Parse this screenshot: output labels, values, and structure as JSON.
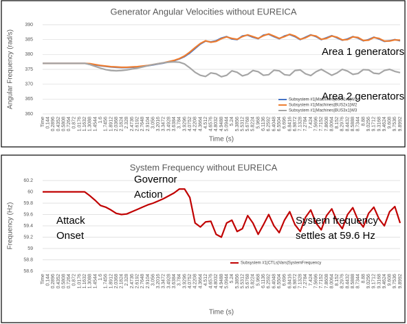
{
  "chart_data": [
    {
      "type": "line",
      "title": "Generator Angular Velocities without EUREICA",
      "y_label": "Angular Frequency (rad/s)",
      "x_label": "Time (s)",
      "categories": [
        "Time",
        "0.144",
        "0.2896",
        "0.4352",
        "0.5808",
        "0.7264",
        "0.872",
        "1.0176",
        "1.1632",
        "1.3088",
        "1.4544",
        "1.6",
        "1.7456",
        "1.8912",
        "2.0368",
        "2.1824",
        "2.328",
        "2.4736",
        "2.6192",
        "2.7648",
        "2.9104",
        "3.056",
        "3.2016",
        "3.3472",
        "3.4928",
        "3.6384",
        "3.784",
        "3.9296",
        "4.0752",
        "4.2208",
        "4.3664",
        "4.512",
        "4.6576",
        "4.8032",
        "4.9488",
        "5.0944",
        "5.24",
        "5.3856",
        "5.5312",
        "5.6768",
        "5.8224",
        "5.968",
        "6.1136",
        "6.2592",
        "6.4048",
        "6.5504",
        "6.696",
        "6.8416",
        "6.9872",
        "7.1328",
        "7.2784",
        "7.424",
        "7.5696",
        "7.7152",
        "7.8608",
        "8.0064",
        "8.152",
        "8.2976",
        "8.4432",
        "8.5888",
        "8.7344",
        "8.88",
        "9.0256",
        "9.1712",
        "9.3168",
        "9.4624",
        "9.608",
        "9.7536",
        "9.8992"
      ],
      "series": [
        {
          "name": "Subsystem #1|Machines|BUS1x1|W1",
          "color": "#4472c4",
          "values": [
            377,
            377,
            377,
            377,
            377,
            377,
            377,
            377,
            377,
            376.8,
            376.5,
            376.2,
            376,
            375.8,
            375.7,
            375.6,
            375.6,
            375.7,
            375.8,
            376,
            376.2,
            376.5,
            376.8,
            377.1,
            377.5,
            377.9,
            378.5,
            379.3,
            380.5,
            382,
            383.5,
            384.5,
            384.2,
            384.6,
            385.5,
            386,
            385.2,
            385,
            386.2,
            386.5,
            385.8,
            385.3,
            386.5,
            386.8,
            386,
            385.3,
            386.2,
            386.7,
            386,
            385,
            385.8,
            386.6,
            386,
            385,
            385.6,
            386.3,
            385.6,
            384.8,
            385.2,
            386,
            385.5,
            384.6,
            385,
            385.8,
            385.2,
            384.4,
            384.6,
            385,
            384.6
          ]
        },
        {
          "name": "Subsystem #1|Machines|BUS2x1|W2",
          "color": "#ed7d31",
          "values": [
            377,
            377,
            377,
            377,
            377,
            377,
            377,
            377,
            377,
            376.9,
            376.6,
            376.3,
            376.1,
            375.9,
            375.8,
            375.7,
            375.7,
            375.8,
            375.9,
            376.1,
            376.3,
            376.6,
            376.9,
            377.2,
            377.6,
            378,
            378.6,
            379.5,
            380.8,
            382.3,
            383.7,
            384.6,
            384.1,
            384.4,
            385.3,
            385.9,
            385.4,
            385.1,
            386,
            386.6,
            386,
            385.4,
            386.3,
            386.9,
            386.2,
            385.4,
            386,
            386.8,
            386.2,
            385.1,
            385.6,
            386.5,
            386.2,
            385.1,
            385.4,
            386.2,
            385.8,
            384.9,
            385,
            385.9,
            385.7,
            384.7,
            384.8,
            385.7,
            385.4,
            384.5,
            384.5,
            384.9,
            384.8
          ]
        },
        {
          "name": "Subsystem #1|Machines|BUS3x1|W3",
          "color": "#a5a5a5",
          "values": [
            377,
            377,
            377,
            377,
            377,
            377,
            377,
            377,
            377,
            376.6,
            376,
            375.4,
            374.9,
            374.6,
            374.5,
            374.6,
            374.8,
            375.1,
            375.4,
            375.8,
            376.2,
            376.6,
            376.9,
            377.2,
            377.4,
            377.5,
            377.4,
            376.8,
            375.5,
            374,
            373,
            372.6,
            373.8,
            373.5,
            372.5,
            373,
            374.5,
            374,
            372.8,
            373.3,
            374.6,
            374.2,
            373,
            373.2,
            374.7,
            374.5,
            373.2,
            373,
            374.6,
            374.8,
            373.5,
            372.9,
            374.2,
            375,
            374,
            373,
            373.8,
            375,
            374.4,
            373.3,
            373.6,
            374.9,
            374.8,
            373.7,
            373.5,
            374.6,
            375,
            374.3,
            373.9
          ]
        }
      ],
      "ylim": [
        360,
        390
      ],
      "yticks": [
        360,
        365,
        370,
        375,
        380,
        385,
        390
      ],
      "grid": true,
      "legend": "bottom-right",
      "annotations": [
        [
          "Area 1 generators"
        ],
        [
          "Area 2 generators"
        ]
      ]
    },
    {
      "type": "line",
      "title": "System Frequency without EUREICA",
      "y_label": "Frequency (Hz)",
      "x_label": "Time (s)",
      "categories": [
        "Time",
        "0.144",
        "0.2896",
        "0.4352",
        "0.5808",
        "0.7264",
        "0.872",
        "1.0176",
        "1.1632",
        "1.3088",
        "1.4544",
        "1.6",
        "1.7456",
        "1.8912",
        "2.0368",
        "2.1824",
        "2.328",
        "2.4736",
        "2.6192",
        "2.7648",
        "2.9104",
        "3.056",
        "3.2016",
        "3.3472",
        "3.4928",
        "3.6384",
        "3.784",
        "3.9296",
        "4.0752",
        "4.2208",
        "4.3664",
        "4.512",
        "4.6576",
        "4.8032",
        "4.9488",
        "5.0944",
        "5.24",
        "5.3856",
        "5.5312",
        "5.6768",
        "5.8224",
        "5.968",
        "6.1136",
        "6.2592",
        "6.4048",
        "6.5504",
        "6.696",
        "6.8416",
        "6.9872",
        "7.1328",
        "7.2784",
        "7.424",
        "7.5696",
        "7.7152",
        "7.8608",
        "8.0064",
        "8.152",
        "8.2976",
        "8.4432",
        "8.5888",
        "8.7344",
        "8.88",
        "9.0256",
        "9.1712",
        "9.3168",
        "9.4624",
        "9.608",
        "9.7536",
        "9.8992"
      ],
      "series": [
        {
          "name": "Subsystem #1|CTLs|Vars|SystemFrequency",
          "color": "#c00000",
          "values": [
            60,
            60,
            60,
            60,
            60,
            60,
            60,
            60,
            60,
            59.93,
            59.85,
            59.76,
            59.73,
            59.68,
            59.62,
            59.6,
            59.61,
            59.65,
            59.69,
            59.73,
            59.77,
            59.8,
            59.84,
            59.88,
            59.93,
            59.98,
            60.05,
            60.05,
            59.9,
            59.45,
            59.38,
            59.47,
            59.48,
            59.25,
            59.2,
            59.45,
            59.5,
            59.3,
            59.35,
            59.58,
            59.45,
            59.25,
            59.42,
            59.6,
            59.4,
            59.28,
            59.5,
            59.65,
            59.42,
            59.3,
            59.55,
            59.68,
            59.45,
            59.33,
            59.58,
            59.7,
            59.48,
            59.35,
            59.6,
            59.72,
            59.5,
            59.38,
            59.62,
            59.73,
            59.52,
            59.4,
            59.65,
            59.74,
            59.45
          ]
        }
      ],
      "ylim": [
        58.6,
        60.2
      ],
      "yticks": [
        58.6,
        58.8,
        59,
        59.2,
        59.4,
        59.6,
        59.8,
        60,
        60.2
      ],
      "grid": true,
      "legend": "bottom",
      "annotations": [
        [
          "Attack",
          "Onset"
        ],
        [
          "Governor",
          "Action"
        ],
        [
          "System frequency",
          "settles at 59.6 Hz"
        ]
      ]
    }
  ]
}
